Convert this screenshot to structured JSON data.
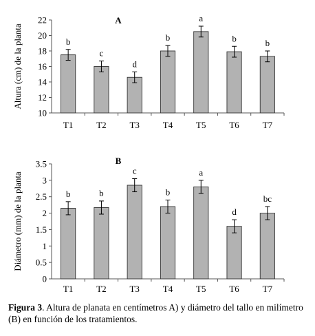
{
  "chart_data": [
    {
      "type": "bar",
      "panel_label": "A",
      "ylabel": "Altura (cm) de la planta",
      "xlabel": "",
      "categories": [
        "T1",
        "T2",
        "T3",
        "T4",
        "T5",
        "T6",
        "T7"
      ],
      "values": [
        17.5,
        16.0,
        14.6,
        18.0,
        20.5,
        17.9,
        17.3
      ],
      "errors": [
        0.7,
        0.7,
        0.7,
        0.7,
        0.7,
        0.7,
        0.7
      ],
      "letters": [
        "b",
        "c",
        "d",
        "b",
        "a",
        "b",
        "b"
      ],
      "ylim": [
        10,
        22
      ],
      "yticks": [
        "10",
        "12",
        "14",
        "16",
        "18",
        "20",
        "22"
      ],
      "grid": false,
      "bar_color": "#b2b2b2"
    },
    {
      "type": "bar",
      "panel_label": "B",
      "ylabel": "Diámetro (mm) de la planta",
      "xlabel": "",
      "categories": [
        "T1",
        "T2",
        "T3",
        "T4",
        "T5",
        "T6",
        "T7"
      ],
      "values": [
        2.15,
        2.17,
        2.85,
        2.2,
        2.8,
        1.6,
        2.0
      ],
      "errors": [
        0.2,
        0.2,
        0.2,
        0.2,
        0.2,
        0.2,
        0.2
      ],
      "letters": [
        "b",
        "b",
        "c",
        "b",
        "a",
        "d",
        "bc"
      ],
      "ylim": [
        0,
        3.5
      ],
      "yticks": [
        "0",
        "0.5",
        "1",
        "1.5",
        "2",
        "2.5",
        "3",
        "3.5"
      ],
      "grid": false,
      "bar_color": "#b2b2b2"
    }
  ],
  "caption": {
    "label": "Figura 3",
    "text": ". Altura de planata en centímetros A) y diámetro del tallo en milímetro (B) en función de los tratamientos."
  }
}
